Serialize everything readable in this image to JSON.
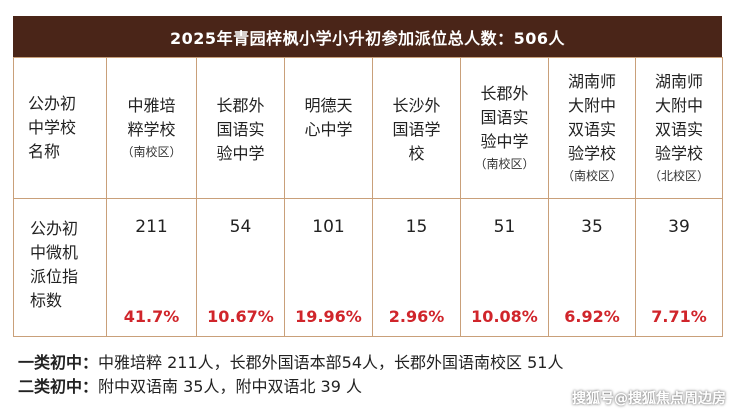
{
  "title": "2025年青园梓枫小学小升初参加派位总人数：506人",
  "table": {
    "header_label": [
      "公办初",
      "中学校",
      "名称"
    ],
    "row_label": [
      "公办初",
      "中微机",
      "派位指",
      "标数"
    ],
    "schools": [
      {
        "name": [
          "中雅培",
          "粹学校"
        ],
        "sub": "（南校区）",
        "count": "211",
        "pct": "41.7%"
      },
      {
        "name": [
          "长郡外",
          "国语实",
          "验中学"
        ],
        "sub": "",
        "count": "54",
        "pct": "10.67%"
      },
      {
        "name": [
          "明德天",
          "心中学"
        ],
        "sub": "",
        "count": "101",
        "pct": "19.96%"
      },
      {
        "name": [
          "长沙外",
          "国语学",
          "校"
        ],
        "sub": "",
        "count": "15",
        "pct": "2.96%"
      },
      {
        "name": [
          "长郡外",
          "国语实",
          "验中学"
        ],
        "sub": "（南校区）",
        "count": "51",
        "pct": "10.08%"
      },
      {
        "name": [
          "湖南师",
          "大附中",
          "双语实",
          "验学校"
        ],
        "sub": "（南校区）",
        "count": "35",
        "pct": "6.92%"
      },
      {
        "name": [
          "湖南师",
          "大附中",
          "双语实",
          "验学校"
        ],
        "sub": "（北校区）",
        "count": "39",
        "pct": "7.71%"
      }
    ]
  },
  "notes": [
    {
      "label": "一类初中：",
      "text": "中雅培粹 211人，长郡外国语本部54人，长郡外国语南校区 51人"
    },
    {
      "label": "二类初中：",
      "text": "附中双语南 35人，附中双语北 39 人"
    }
  ],
  "watermark": "搜狐号@搜狐焦点周边房",
  "colors": {
    "title_bg": "#4a2518",
    "border": "#c9a07a",
    "percent": "#d0252b"
  }
}
